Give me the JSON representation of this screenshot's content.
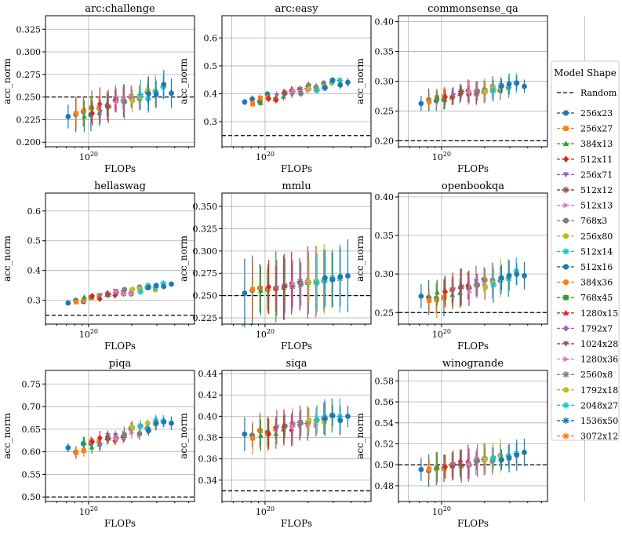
{
  "figure": {
    "legend_title": "Model Shape",
    "legend_random_label": "Random"
  },
  "model_shapes": [
    {
      "name": "256x23",
      "color": "#1f77b4",
      "marker": "circle"
    },
    {
      "name": "256x27",
      "color": "#ff7f0e",
      "marker": "square"
    },
    {
      "name": "384x13",
      "color": "#2ca02c",
      "marker": "triangle-up"
    },
    {
      "name": "512x11",
      "color": "#d62728",
      "marker": "diamond"
    },
    {
      "name": "256x71",
      "color": "#9467bd",
      "marker": "triangle-down"
    },
    {
      "name": "512x12",
      "color": "#8c564b",
      "marker": "star"
    },
    {
      "name": "512x13",
      "color": "#e377c2",
      "marker": "triangle-right"
    },
    {
      "name": "768x3",
      "color": "#7f7f7f",
      "marker": "circle"
    },
    {
      "name": "256x80",
      "color": "#bcbd22",
      "marker": "circle"
    },
    {
      "name": "512x14",
      "color": "#17becf",
      "marker": "star"
    },
    {
      "name": "512x16",
      "color": "#1f77b4",
      "marker": "circle"
    },
    {
      "name": "384x36",
      "color": "#ff7f0e",
      "marker": "circle"
    },
    {
      "name": "768x45",
      "color": "#2ca02c",
      "marker": "square"
    },
    {
      "name": "1280x15",
      "color": "#d62728",
      "marker": "triangle-up"
    },
    {
      "name": "1792x7",
      "color": "#9467bd",
      "marker": "diamond"
    },
    {
      "name": "1024x28",
      "color": "#8c564b",
      "marker": "triangle-down"
    },
    {
      "name": "1280x36",
      "color": "#e377c2",
      "marker": "triangle-right"
    },
    {
      "name": "2560x8",
      "color": "#7f7f7f",
      "marker": "star"
    },
    {
      "name": "1792x18",
      "color": "#bcbd22",
      "marker": "circle"
    },
    {
      "name": "2048x27",
      "color": "#17becf",
      "marker": "star"
    },
    {
      "name": "1536x50",
      "color": "#1f77b4",
      "marker": "star"
    },
    {
      "name": "3072x12",
      "color": "#ff7f0e",
      "marker": "star"
    }
  ],
  "chart_data": [
    {
      "type": "scatter",
      "title": "arc:challenge",
      "xlabel": "FLOPs",
      "ylabel": "acc_norm",
      "x_scale": "log",
      "xlim": [
        5e+19,
        5.5e+20
      ],
      "ylim": [
        0.195,
        0.34
      ],
      "yticks": [
        0.2,
        0.225,
        0.25,
        0.275,
        0.3,
        0.325
      ],
      "ytick_labels": [
        "0.200",
        "0.225",
        "0.250",
        "0.275",
        "0.300",
        "0.325"
      ],
      "random_baseline": 0.25,
      "lo": [
        0.226,
        0.248
      ],
      "hi": [
        0.26,
        0.315
      ],
      "err": 0.015,
      "grid": true
    },
    {
      "type": "scatter",
      "title": "arc:easy",
      "xlabel": "FLOPs",
      "ylabel": "acc_norm",
      "x_scale": "log",
      "xlim": [
        5e+19,
        5.5e+20
      ],
      "ylim": [
        0.21,
        0.68
      ],
      "yticks": [
        0.3,
        0.4,
        0.5,
        0.6
      ],
      "ytick_labels": [
        "0.3",
        "0.4",
        "0.5",
        "0.6"
      ],
      "random_baseline": 0.25,
      "lo": [
        0.365,
        0.47
      ],
      "hi": [
        0.445,
        0.625
      ],
      "err": 0.012,
      "grid": true
    },
    {
      "type": "scatter",
      "title": "commonsense_qa",
      "xlabel": "FLOPs",
      "ylabel": "acc_norm",
      "x_scale": "log",
      "xlim": [
        5e+19,
        5.5e+20
      ],
      "ylim": [
        0.19,
        0.41
      ],
      "yticks": [
        0.2,
        0.25,
        0.3,
        0.35,
        0.4
      ],
      "ytick_labels": [
        "0.20",
        "0.25",
        "0.30",
        "0.35",
        "0.40"
      ],
      "random_baseline": 0.2,
      "lo": [
        0.265,
        0.325
      ],
      "hi": [
        0.295,
        0.39
      ],
      "err": 0.015,
      "grid": true
    },
    {
      "type": "scatter",
      "title": "hellaswag",
      "xlabel": "FLOPs",
      "ylabel": "acc_norm",
      "x_scale": "log",
      "xlim": [
        5e+19,
        5.5e+20
      ],
      "ylim": [
        0.22,
        0.66
      ],
      "yticks": [
        0.3,
        0.4,
        0.5,
        0.6
      ],
      "ytick_labels": [
        "0.3",
        "0.4",
        "0.5",
        "0.6"
      ],
      "random_baseline": 0.25,
      "lo": [
        0.295,
        0.44
      ],
      "hi": [
        0.35,
        0.625
      ],
      "err": 0.006,
      "grid": true
    },
    {
      "type": "scatter",
      "title": "mmlu",
      "xlabel": "FLOPs",
      "ylabel": "acc_norm",
      "x_scale": "log",
      "xlim": [
        5e+19,
        5.5e+20
      ],
      "ylim": [
        0.218,
        0.365
      ],
      "yticks": [
        0.225,
        0.25,
        0.275,
        0.3,
        0.325,
        0.35
      ],
      "ytick_labels": [
        "0.225",
        "0.250",
        "0.275",
        "0.300",
        "0.325",
        "0.350"
      ],
      "random_baseline": 0.25,
      "lo": [
        0.255,
        0.28
      ],
      "hi": [
        0.27,
        0.33
      ],
      "err": 0.032,
      "grid": true
    },
    {
      "type": "scatter",
      "title": "openbookqa",
      "xlabel": "FLOPs",
      "ylabel": "acc_norm",
      "x_scale": "log",
      "xlim": [
        5e+19,
        5.5e+20
      ],
      "ylim": [
        0.235,
        0.405
      ],
      "yticks": [
        0.25,
        0.3,
        0.35,
        0.4
      ],
      "ytick_labels": [
        "0.25",
        "0.30",
        "0.35",
        "0.40"
      ],
      "random_baseline": 0.25,
      "lo": [
        0.265,
        0.32
      ],
      "hi": [
        0.3,
        0.37
      ],
      "err": 0.02,
      "grid": true
    },
    {
      "type": "scatter",
      "title": "piqa",
      "xlabel": "FLOPs",
      "ylabel": "acc_norm",
      "x_scale": "log",
      "xlim": [
        5e+19,
        5.5e+20
      ],
      "ylim": [
        0.49,
        0.78
      ],
      "yticks": [
        0.5,
        0.55,
        0.6,
        0.65,
        0.7,
        0.75
      ],
      "ytick_labels": [
        "0.50",
        "0.55",
        "0.60",
        "0.65",
        "0.70",
        "0.75"
      ],
      "random_baseline": 0.5,
      "lo": [
        0.6,
        0.7
      ],
      "hi": [
        0.665,
        0.76
      ],
      "err": 0.012,
      "grid": true
    },
    {
      "type": "scatter",
      "title": "siqa",
      "xlabel": "FLOPs",
      "ylabel": "acc_norm",
      "x_scale": "log",
      "xlim": [
        5e+19,
        5.5e+20
      ],
      "ylim": [
        0.32,
        0.443
      ],
      "yticks": [
        0.34,
        0.36,
        0.38,
        0.4,
        0.42,
        0.44
      ],
      "ytick_labels": [
        "0.34",
        "0.36",
        "0.38",
        "0.40",
        "0.42",
        "0.44"
      ],
      "random_baseline": 0.33,
      "lo": [
        0.38,
        0.39
      ],
      "hi": [
        0.4,
        0.415
      ],
      "err": 0.014,
      "grid": true
    },
    {
      "type": "scatter",
      "title": "winogrande",
      "xlabel": "FLOPs",
      "ylabel": "acc_norm",
      "x_scale": "log",
      "xlim": [
        5e+19,
        5.5e+20
      ],
      "ylim": [
        0.465,
        0.59
      ],
      "yticks": [
        0.48,
        0.5,
        0.52,
        0.54,
        0.56,
        0.58
      ],
      "ytick_labels": [
        "0.48",
        "0.50",
        "0.52",
        "0.54",
        "0.56",
        "0.58"
      ],
      "random_baseline": 0.5,
      "lo": [
        0.495,
        0.51
      ],
      "hi": [
        0.51,
        0.568
      ],
      "err": 0.013,
      "grid": true
    }
  ]
}
